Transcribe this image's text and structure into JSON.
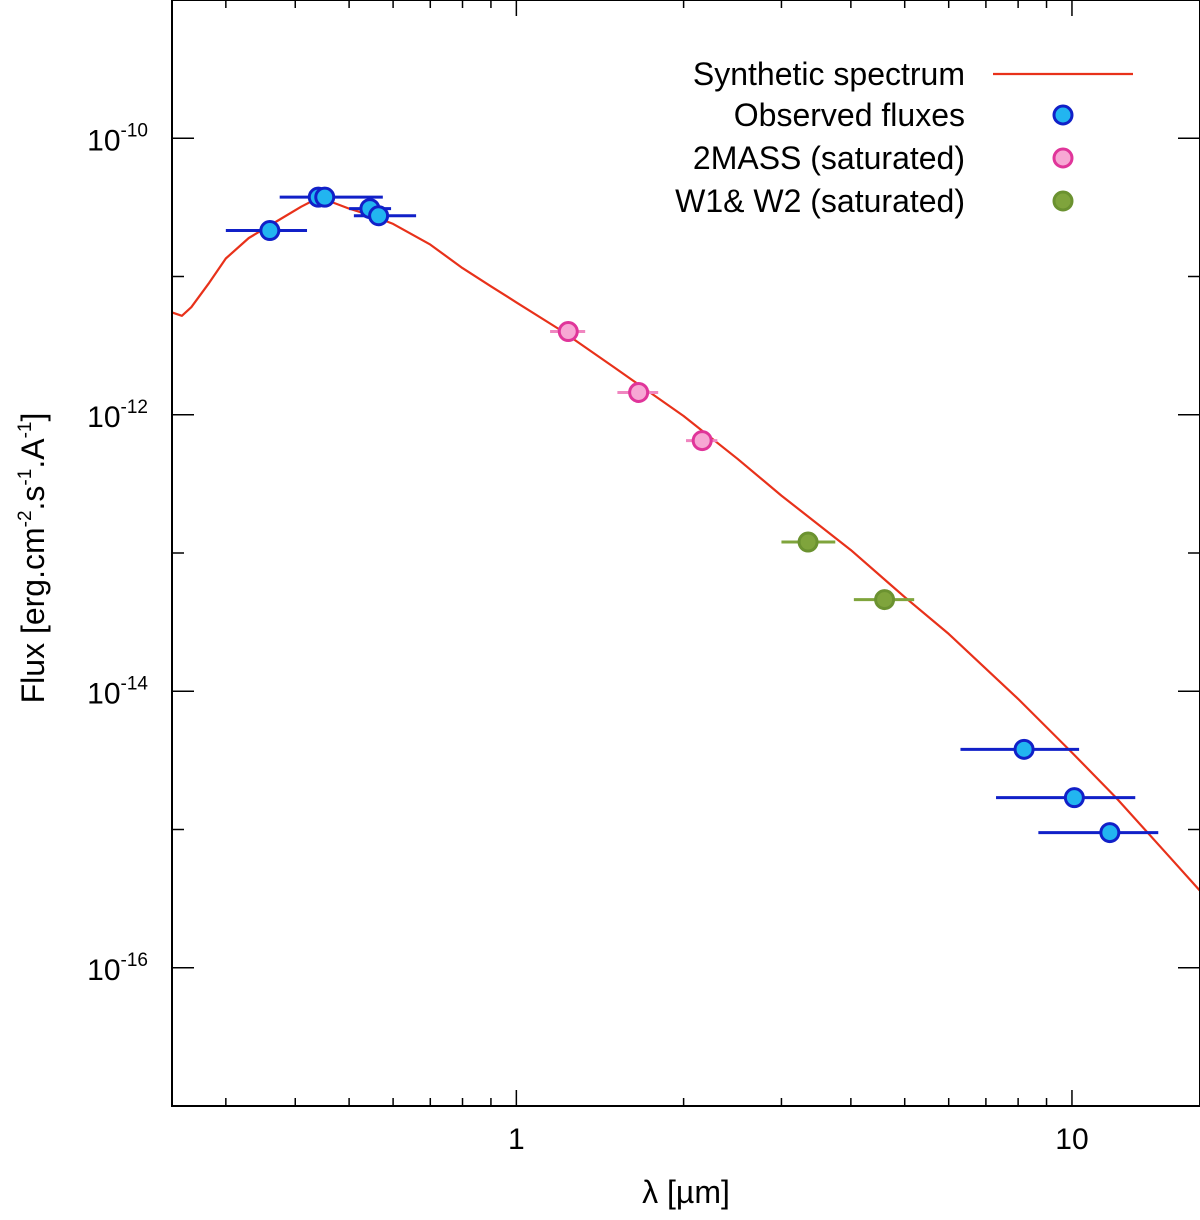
{
  "chart_data": {
    "type": "scatter",
    "xlabel": "λ [µm]",
    "ylabel": "Flux [erg.cm^-2.s^-1.A^-1]",
    "ylabel_parts": {
      "main": "Flux [erg.cm",
      "e1": "-2",
      "p2": ".s",
      "e2": "-1",
      "p3": ".A",
      "e3": "-1",
      "end": "]"
    },
    "xscale": "log",
    "yscale": "log",
    "xlim": [
      0.24,
      17
    ],
    "ylim": [
      1e-17,
      1e-09
    ],
    "x_ticks": [
      {
        "value": 1,
        "label": "1"
      },
      {
        "value": 10,
        "label": "10"
      }
    ],
    "y_ticks": [
      {
        "value": 1e-10,
        "base": "10",
        "exp": "-10"
      },
      {
        "value": 1e-12,
        "base": "10",
        "exp": "-12"
      },
      {
        "value": 1e-14,
        "base": "10",
        "exp": "-14"
      },
      {
        "value": 1e-16,
        "base": "10",
        "exp": "-16"
      }
    ],
    "grid": false,
    "legend_position": "top-right",
    "series": [
      {
        "name": "Synthetic spectrum",
        "kind": "line",
        "color": "#e8311a",
        "points": [
          [
            0.24,
            5.5e-12
          ],
          [
            0.25,
            5.2e-12
          ],
          [
            0.26,
            6e-12
          ],
          [
            0.28,
            9e-12
          ],
          [
            0.3,
            1.35e-11
          ],
          [
            0.33,
            1.9e-11
          ],
          [
            0.37,
            2.5e-11
          ],
          [
            0.41,
            3.2e-11
          ],
          [
            0.44,
            3.7e-11
          ],
          [
            0.47,
            3.4e-11
          ],
          [
            0.5,
            3.1e-11
          ],
          [
            0.55,
            2.75e-11
          ],
          [
            0.6,
            2.4e-11
          ],
          [
            0.7,
            1.7e-11
          ],
          [
            0.8,
            1.15e-11
          ],
          [
            0.9,
            8.5e-12
          ],
          [
            1.0,
            6.5e-12
          ],
          [
            1.2,
            4.1e-12
          ],
          [
            1.5,
            2.2e-12
          ],
          [
            2.0,
            9.8e-13
          ],
          [
            2.5,
            4.8e-13
          ],
          [
            3.0,
            2.6e-13
          ],
          [
            4.0,
            1.05e-13
          ],
          [
            5.0,
            4.8e-14
          ],
          [
            6.0,
            2.6e-14
          ],
          [
            8.0,
            8.8e-15
          ],
          [
            10.0,
            3.6e-15
          ],
          [
            12.0,
            1.7e-15
          ],
          [
            15.0,
            6.3e-16
          ],
          [
            17.0,
            3.6e-16
          ]
        ]
      },
      {
        "name": "Observed fluxes",
        "kind": "points",
        "color": "#22b5f0",
        "edge": "#1120c8",
        "errcolor": "#1120c8",
        "points": [
          {
            "x": 0.36,
            "y": 2.15e-11,
            "xlo": 0.3,
            "xhi": 0.42
          },
          {
            "x": 0.44,
            "y": 3.75e-11,
            "xlo": 0.375,
            "xhi": 0.575
          },
          {
            "x": 0.452,
            "y": 3.75e-11,
            "xlo": 0.452,
            "xhi": 0.452
          },
          {
            "x": 0.545,
            "y": 3.1e-11,
            "xlo": 0.5,
            "xhi": 0.595
          },
          {
            "x": 0.565,
            "y": 2.75e-11,
            "xlo": 0.51,
            "xhi": 0.66
          },
          {
            "x": 8.2,
            "y": 3.8e-15,
            "xlo": 6.3,
            "xhi": 10.3
          },
          {
            "x": 10.1,
            "y": 1.7e-15,
            "xlo": 7.3,
            "xhi": 13.0
          },
          {
            "x": 11.7,
            "y": 9.5e-16,
            "xlo": 8.7,
            "xhi": 14.3
          }
        ]
      },
      {
        "name": "2MASS (saturated)",
        "kind": "points",
        "color": "#f7a7d4",
        "edge": "#e0359a",
        "errcolor": "#f086c0",
        "points": [
          {
            "x": 1.24,
            "y": 4e-12,
            "xlo": 1.15,
            "xhi": 1.33
          },
          {
            "x": 1.66,
            "y": 1.45e-12,
            "xlo": 1.52,
            "xhi": 1.8
          },
          {
            "x": 2.16,
            "y": 6.5e-13,
            "xlo": 2.02,
            "xhi": 2.3
          }
        ]
      },
      {
        "name": "W1& W2 (saturated)",
        "kind": "points",
        "color": "#7fa43c",
        "edge": "#6b9230",
        "errcolor": "#7fa43c",
        "points": [
          {
            "x": 3.35,
            "y": 1.2e-13,
            "xlo": 3.0,
            "xhi": 3.75
          },
          {
            "x": 4.6,
            "y": 4.6e-14,
            "xlo": 4.05,
            "xhi": 5.2
          }
        ]
      }
    ]
  }
}
